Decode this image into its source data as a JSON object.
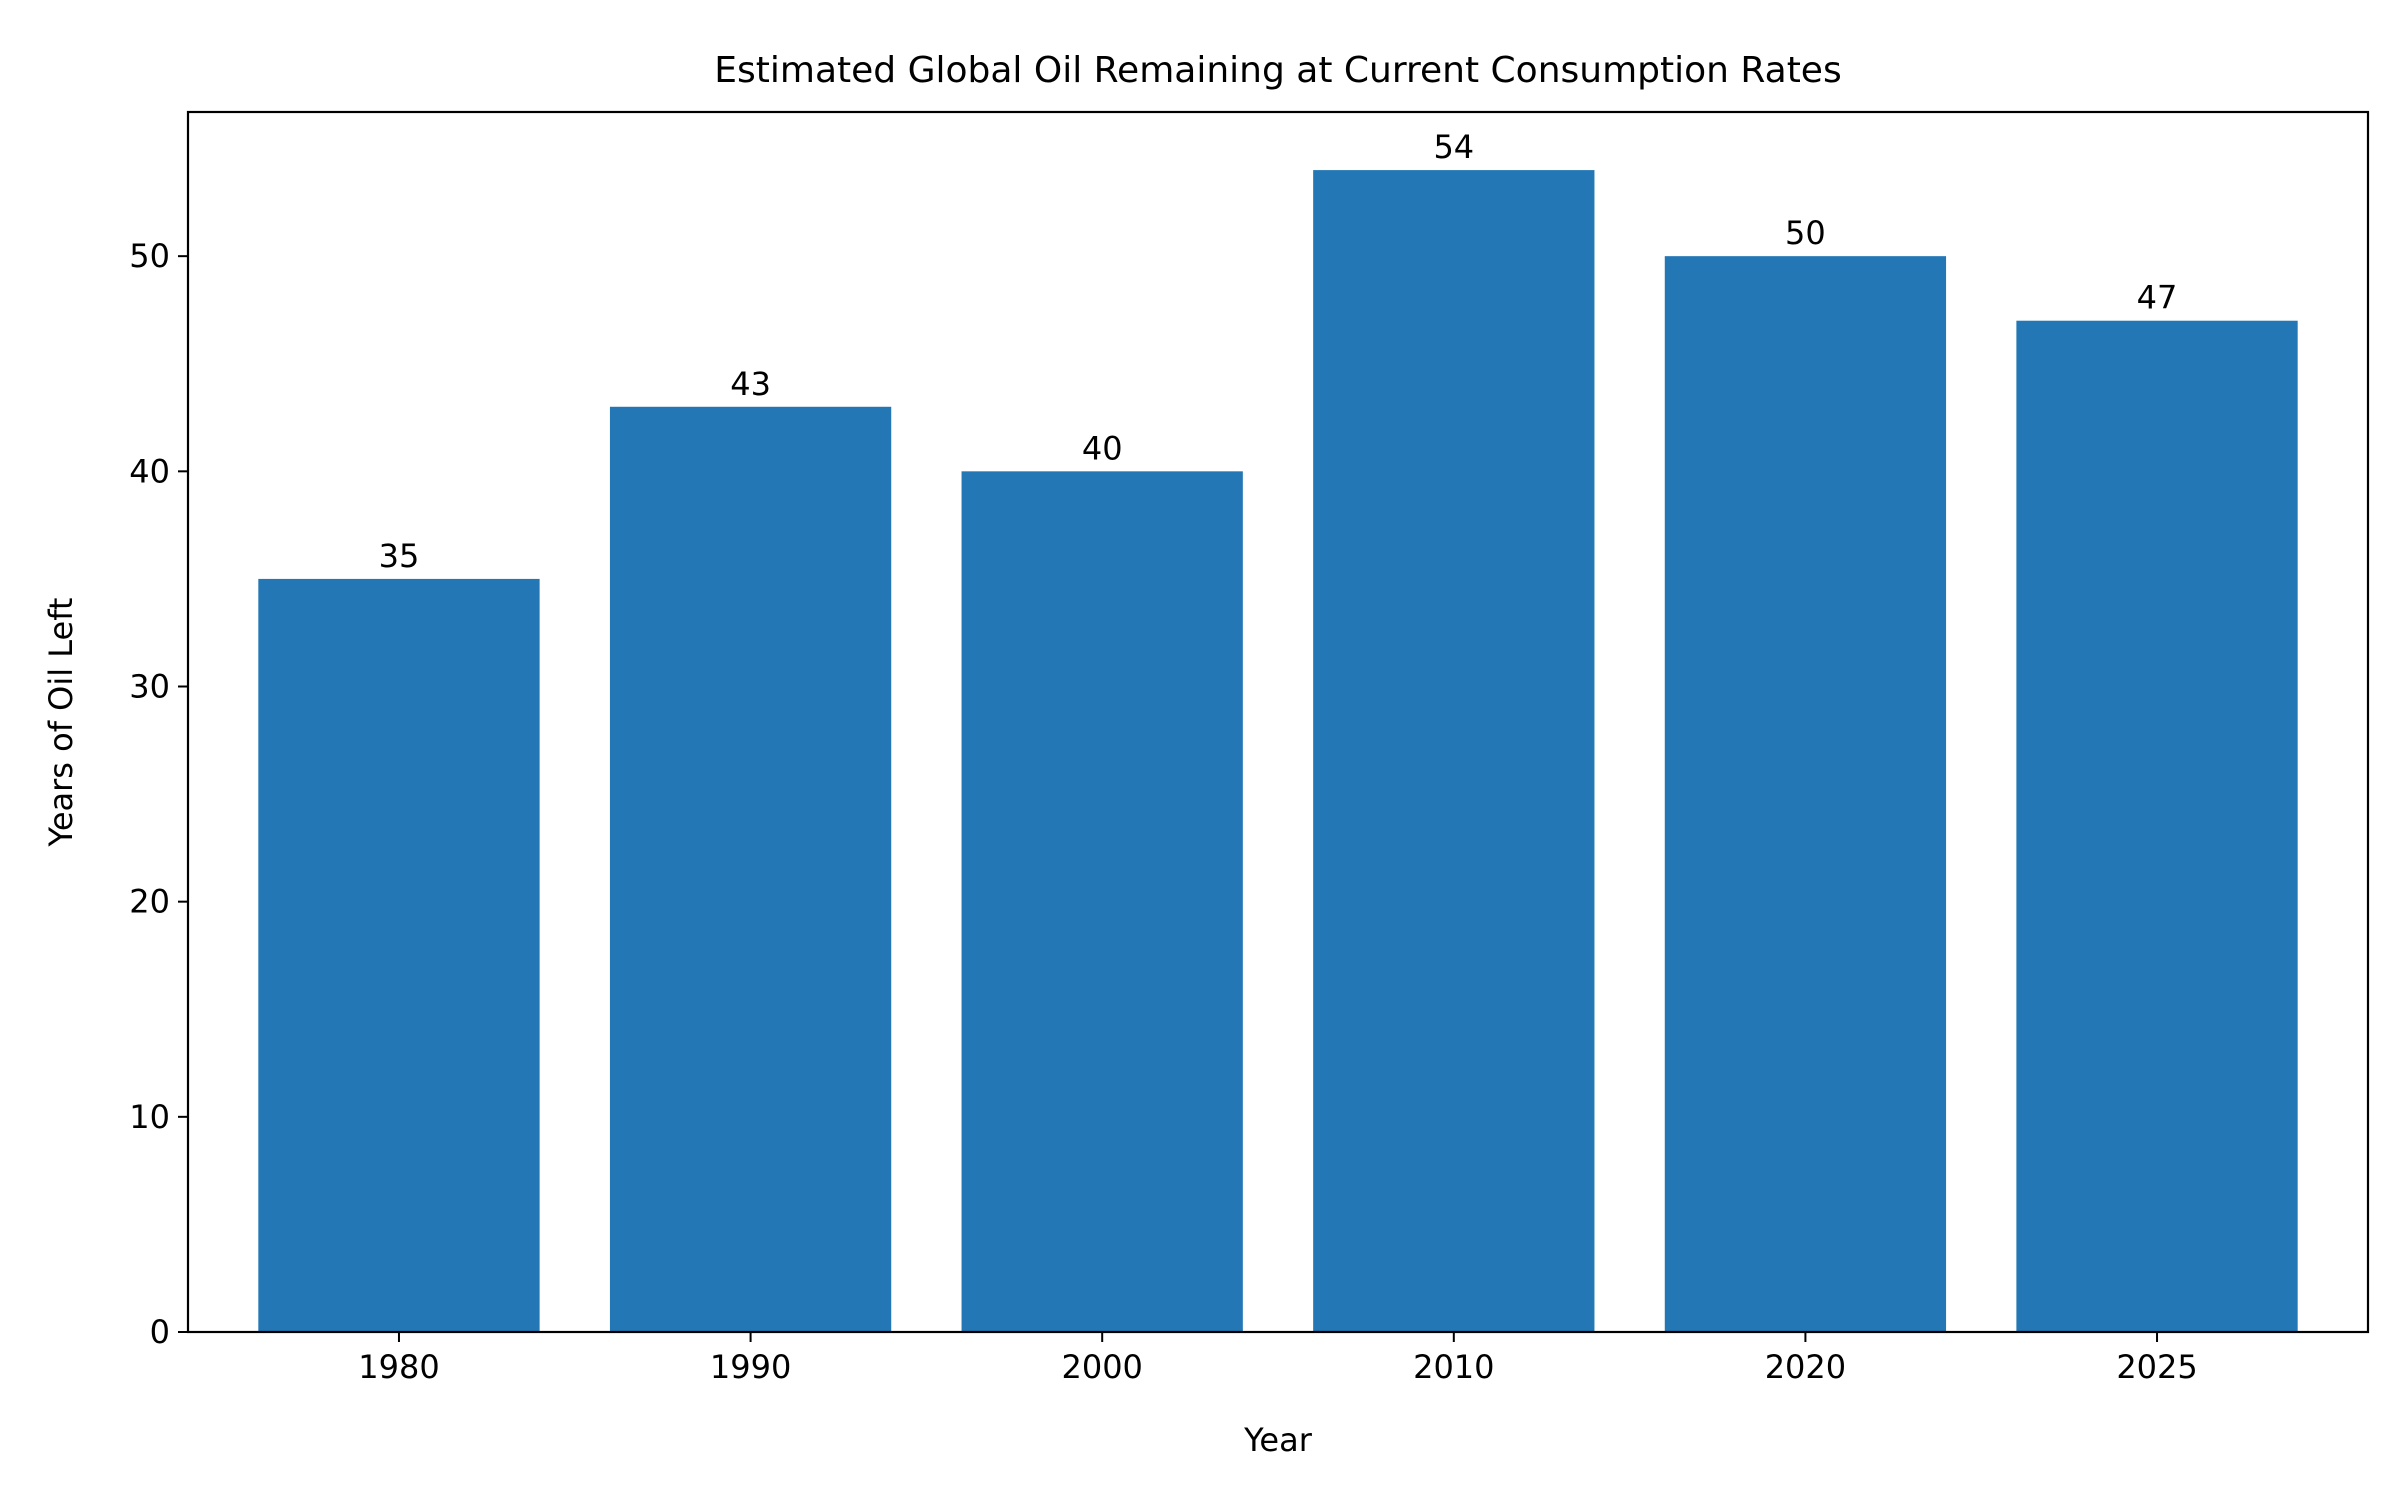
{
  "chart_data": {
    "type": "bar",
    "title": "Estimated Global Oil Remaining at Current Consumption Rates",
    "xlabel": "Year",
    "ylabel": "Years of Oil Left",
    "categories": [
      "1980",
      "1990",
      "2000",
      "2010",
      "2020",
      "2025"
    ],
    "values": [
      35,
      43,
      40,
      54,
      50,
      47
    ],
    "data_labels": [
      "35",
      "43",
      "40",
      "54",
      "50",
      "47"
    ],
    "ylim": [
      0,
      56.7
    ],
    "yticks": [
      0,
      10,
      20,
      30,
      40,
      50
    ],
    "ytick_labels": [
      "0",
      "10",
      "20",
      "30",
      "40",
      "50"
    ],
    "grid": false,
    "legend": "none",
    "bar_color": "#2277b4"
  }
}
